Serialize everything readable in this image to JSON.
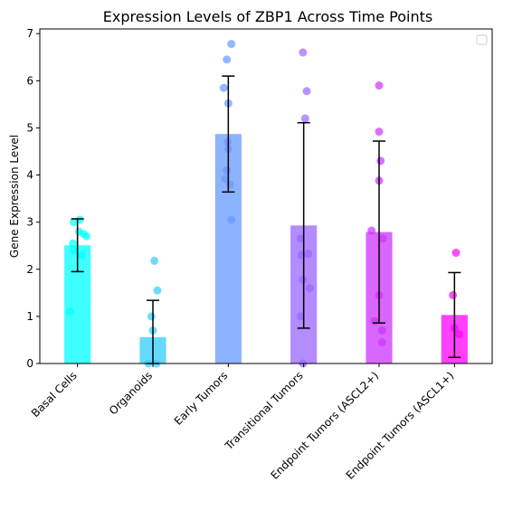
{
  "chart_data": {
    "type": "bar",
    "title": "Expression Levels of ZBP1 Across Time Points",
    "xlabel": "",
    "ylabel": "Gene Expression Level",
    "ylim": [
      0,
      7.1
    ],
    "yticks": [
      0,
      1,
      2,
      3,
      4,
      5,
      6,
      7
    ],
    "grid": false,
    "legend": "top-right (empty)",
    "categories": [
      "Basal Cells",
      "Organoids",
      "Early Tumors",
      "Transitional Tumors",
      "Endpoint Tumors (ASCL2+)",
      "Endpoint Tumors (ASCL1+)"
    ],
    "values": [
      2.51,
      0.56,
      4.87,
      2.93,
      2.79,
      1.03
    ],
    "error": [
      0.56,
      0.78,
      1.23,
      2.18,
      1.93,
      0.9
    ],
    "colors": [
      "#00ffff",
      "#33ccff",
      "#6699ff",
      "#9966ff",
      "#cc33ff",
      "#ff00ff"
    ],
    "points": [
      [
        3.05,
        3.0,
        2.8,
        2.75,
        2.7,
        2.55,
        2.4,
        2.3,
        1.1
      ],
      [
        2.18,
        1.55,
        1.0,
        0.7,
        0.0,
        0.0
      ],
      [
        6.78,
        6.45,
        5.85,
        5.52,
        4.7,
        4.55,
        4.1,
        3.92,
        3.8,
        3.05
      ],
      [
        6.6,
        5.78,
        5.2,
        2.65,
        2.33,
        2.3,
        1.78,
        1.6,
        1.0,
        0.0
      ],
      [
        5.9,
        4.92,
        4.3,
        3.88,
        2.82,
        2.65,
        1.45,
        0.9,
        0.7,
        0.45
      ],
      [
        2.35,
        1.45,
        0.75,
        0.62
      ]
    ],
    "point_offsets": [
      [
        0.03,
        -0.05,
        0.02,
        0.08,
        0.12,
        -0.06,
        -0.04,
        0.06,
        -0.1
      ],
      [
        0.02,
        0.06,
        -0.02,
        0.0,
        -0.06,
        0.05
      ],
      [
        0.04,
        -0.02,
        -0.06,
        0.0,
        -0.01,
        0.0,
        -0.02,
        -0.04,
        0.02,
        0.04
      ],
      [
        -0.01,
        0.04,
        0.02,
        -0.04,
        0.06,
        -0.03,
        -0.01,
        0.08,
        -0.04,
        -0.01
      ],
      [
        0.0,
        0.0,
        0.02,
        0.0,
        -0.1,
        0.05,
        0.0,
        -0.06,
        0.04,
        0.04
      ],
      [
        0.02,
        -0.02,
        0.0,
        0.06
      ]
    ]
  }
}
